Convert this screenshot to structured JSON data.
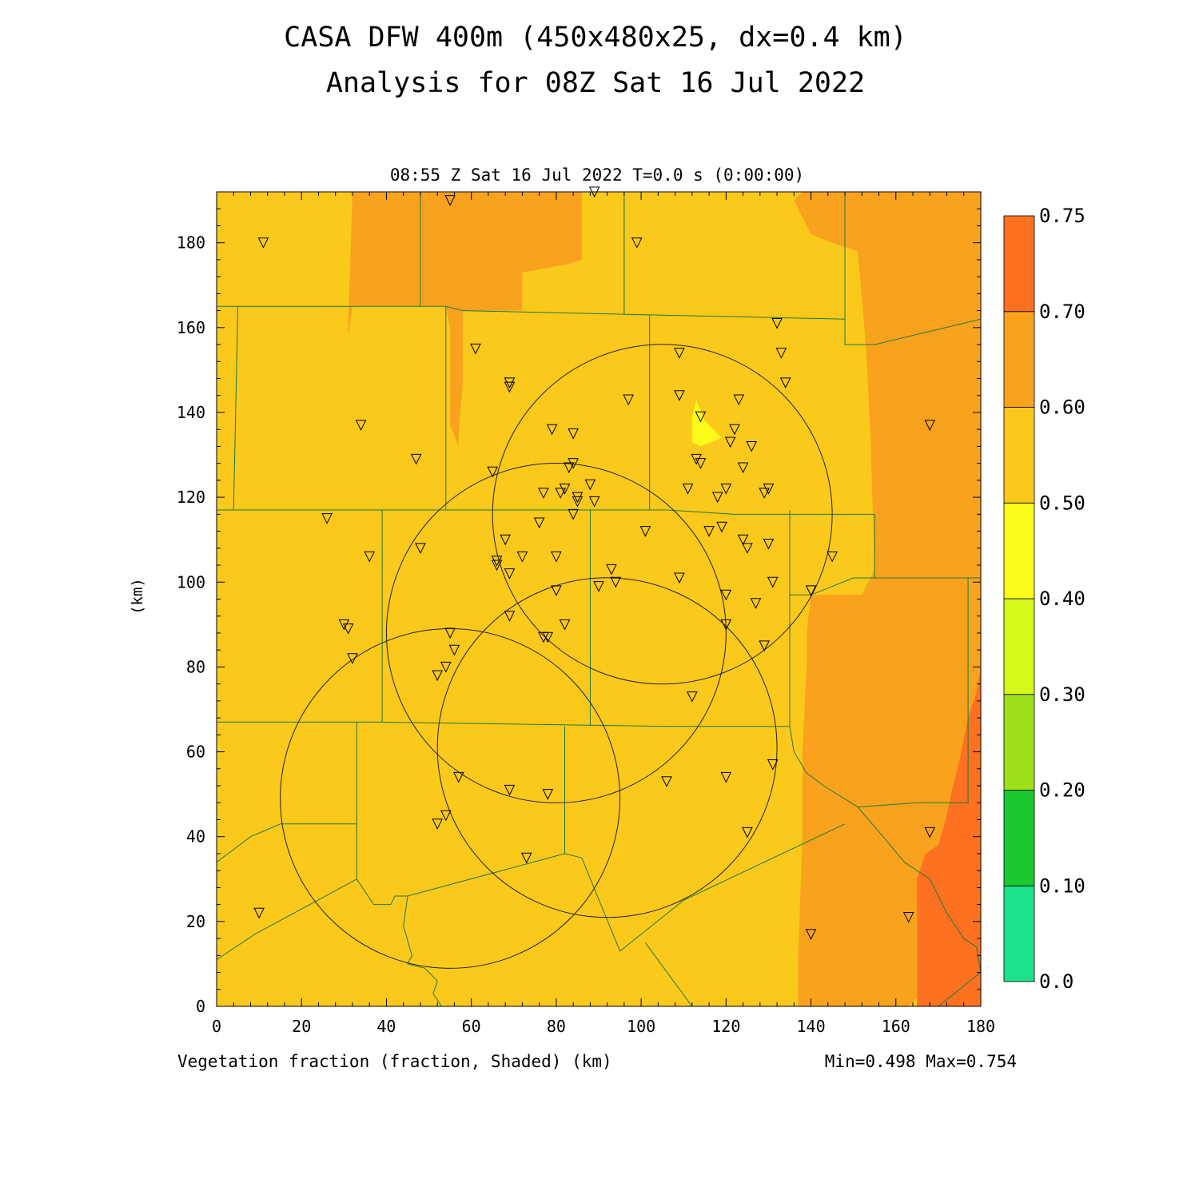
{
  "header": {
    "title_line1": "CASA DFW 400m (450x480x25, dx=0.4 km)",
    "title_line2": "Analysis for 08Z Sat 16 Jul 2022",
    "subtitle": "08:55 Z Sat 16 Jul 2022   T=0.0 s (0:00:00)"
  },
  "footer": {
    "variable_label": "Vegetation fraction (fraction, Shaded)  (km)",
    "minmax": "Min=0.498 Max=0.754"
  },
  "chart_data": {
    "type": "heatmap",
    "title": "Vegetation fraction (fraction, Shaded)",
    "xlabel": "(km)",
    "ylabel": "(km)",
    "xlim": [
      0,
      180
    ],
    "ylim": [
      0,
      192
    ],
    "x_ticks": [
      0,
      20,
      40,
      60,
      80,
      100,
      120,
      140,
      160,
      180
    ],
    "y_ticks": [
      0,
      20,
      40,
      60,
      80,
      100,
      120,
      140,
      160,
      180
    ],
    "min": 0.498,
    "max": 0.754,
    "colorbar": {
      "labels": [
        "0.0",
        "0.10",
        "0.20",
        "0.30",
        "0.40",
        "0.50",
        "0.60",
        "0.70",
        "0.75"
      ],
      "colors": [
        "#1de28c",
        "#1bc92e",
        "#9fe01b",
        "#d5f81b",
        "#fbfa18",
        "#fbc81c",
        "#f8a21e",
        "#fd7121"
      ]
    },
    "regions": [
      {
        "value": 0.55,
        "color": "#fbc81c",
        "polygon": [
          [
            0,
            0
          ],
          [
            180,
            0
          ],
          [
            180,
            192
          ],
          [
            0,
            192
          ]
        ]
      },
      {
        "value": 0.65,
        "color": "#f8a21e",
        "polygon": [
          [
            31,
            117
          ],
          [
            31,
            158
          ],
          [
            32,
            165
          ],
          [
            54,
            165
          ],
          [
            55,
            160
          ],
          [
            55,
            137
          ],
          [
            57,
            132
          ],
          [
            57,
            135
          ],
          [
            58,
            147
          ],
          [
            58,
            156
          ],
          [
            58,
            164
          ],
          [
            72,
            164
          ],
          [
            72,
            173
          ],
          [
            83,
            175
          ],
          [
            86,
            176
          ],
          [
            86,
            181
          ],
          [
            86,
            192
          ],
          [
            32,
            192
          ],
          [
            31,
            160
          ]
        ]
      },
      {
        "value": 0.65,
        "color": "#f8a21e",
        "polygon": [
          [
            138,
            192
          ],
          [
            180,
            192
          ],
          [
            180,
            80
          ],
          [
            179,
            60
          ],
          [
            175,
            52
          ],
          [
            172,
            40
          ],
          [
            168,
            28
          ],
          [
            165,
            20
          ],
          [
            165,
            2
          ],
          [
            163,
            0
          ],
          [
            137,
            0
          ],
          [
            137,
            12
          ],
          [
            138,
            40
          ],
          [
            138,
            60
          ],
          [
            139,
            80
          ],
          [
            139,
            88
          ],
          [
            140,
            97
          ],
          [
            152,
            97
          ],
          [
            155,
            103
          ],
          [
            154,
            135
          ],
          [
            153,
            155
          ],
          [
            152,
            167
          ],
          [
            151,
            178
          ],
          [
            145,
            180
          ],
          [
            140,
            182
          ],
          [
            136,
            190
          ]
        ]
      },
      {
        "value": 0.72,
        "color": "#fd7121",
        "polygon": [
          [
            180,
            80
          ],
          [
            180,
            0
          ],
          [
            165,
            0
          ],
          [
            165,
            30
          ],
          [
            167,
            36
          ],
          [
            170,
            38
          ],
          [
            172,
            45
          ],
          [
            173,
            50
          ],
          [
            175,
            58
          ],
          [
            177,
            68
          ],
          [
            179,
            74
          ]
        ]
      },
      {
        "value": 0.45,
        "color": "#fbfa18",
        "polygon": [
          [
            113,
            143
          ],
          [
            115,
            138
          ],
          [
            119,
            134
          ],
          [
            114,
            132
          ],
          [
            112,
            133
          ],
          [
            112,
            139
          ]
        ]
      }
    ],
    "range_rings": [
      {
        "center": [
          105,
          116
        ],
        "radius_km": 40
      },
      {
        "center": [
          80,
          88
        ],
        "radius_km": 40
      },
      {
        "center": [
          92,
          61
        ],
        "radius_km": 40
      },
      {
        "center": [
          55,
          49
        ],
        "radius_km": 40
      }
    ],
    "county_lines": [
      [
        [
          0,
          165
        ],
        [
          32,
          165
        ],
        [
          54,
          165
        ],
        [
          58,
          164
        ]
      ],
      [
        [
          58,
          164
        ],
        [
          102,
          163
        ],
        [
          148,
          162
        ],
        [
          148,
          156
        ],
        [
          155,
          156
        ],
        [
          180,
          162
        ]
      ],
      [
        [
          48,
          192
        ],
        [
          48,
          165
        ]
      ],
      [
        [
          96,
          192
        ],
        [
          96,
          163
        ]
      ],
      [
        [
          148,
          192
        ],
        [
          148,
          162
        ]
      ],
      [
        [
          5,
          165
        ],
        [
          4,
          117
        ]
      ],
      [
        [
          0,
          117
        ],
        [
          39,
          117
        ],
        [
          54,
          117
        ]
      ],
      [
        [
          54,
          117
        ],
        [
          106,
          117
        ],
        [
          122,
          116
        ],
        [
          155,
          116
        ]
      ],
      [
        [
          155,
          116
        ],
        [
          155,
          101
        ],
        [
          150,
          101
        ]
      ],
      [
        [
          150,
          101
        ],
        [
          140,
          97
        ],
        [
          135,
          97
        ]
      ],
      [
        [
          54,
          165
        ],
        [
          54,
          117
        ]
      ],
      [
        [
          102,
          163
        ],
        [
          102,
          117
        ]
      ],
      [
        [
          39,
          117
        ],
        [
          39,
          67
        ]
      ],
      [
        [
          0,
          67
        ],
        [
          33,
          67
        ],
        [
          39,
          67
        ],
        [
          106,
          66
        ],
        [
          135,
          66
        ],
        [
          135,
          117
        ]
      ],
      [
        [
          88,
          117
        ],
        [
          88,
          66
        ]
      ],
      [
        [
          33,
          67
        ],
        [
          33,
          43
        ],
        [
          15,
          43
        ],
        [
          8,
          40
        ],
        [
          0,
          34
        ]
      ],
      [
        [
          33,
          30
        ],
        [
          9,
          17
        ],
        [
          0,
          11
        ]
      ],
      [
        [
          33,
          43
        ],
        [
          33,
          30
        ]
      ],
      [
        [
          33,
          30
        ],
        [
          37,
          24
        ],
        [
          41,
          24
        ],
        [
          42,
          26
        ],
        [
          45,
          26
        ],
        [
          82,
          36
        ],
        [
          86,
          35
        ]
      ],
      [
        [
          82,
          66
        ],
        [
          82,
          36
        ]
      ],
      [
        [
          86,
          35
        ],
        [
          95,
          13
        ],
        [
          110,
          25
        ],
        [
          148,
          43
        ]
      ],
      [
        [
          135,
          66
        ],
        [
          136,
          60
        ],
        [
          139,
          55
        ],
        [
          143,
          52
        ],
        [
          151,
          47
        ]
      ],
      [
        [
          151,
          47
        ],
        [
          165,
          48
        ],
        [
          177,
          48
        ],
        [
          177,
          67
        ],
        [
          177,
          101
        ],
        [
          180,
          101
        ]
      ],
      [
        [
          155,
          101
        ],
        [
          172,
          101
        ],
        [
          177,
          101
        ]
      ],
      [
        [
          45,
          26
        ],
        [
          44,
          19
        ],
        [
          46,
          12
        ],
        [
          45,
          10
        ],
        [
          49,
          9
        ],
        [
          50,
          8
        ],
        [
          52,
          6
        ],
        [
          51,
          3
        ],
        [
          53,
          0
        ]
      ],
      [
        [
          151,
          47
        ],
        [
          157,
          40
        ],
        [
          162,
          34
        ],
        [
          168,
          30
        ],
        [
          170,
          26
        ],
        [
          172,
          22
        ],
        [
          176,
          16
        ],
        [
          179,
          14
        ],
        [
          180,
          8
        ]
      ],
      [
        [
          101,
          15
        ],
        [
          112,
          0
        ]
      ],
      [
        [
          170,
          0
        ],
        [
          180,
          8
        ]
      ]
    ],
    "stations": [
      [
        11,
        180
      ],
      [
        55,
        190
      ],
      [
        89,
        192
      ],
      [
        99,
        180
      ],
      [
        61,
        155
      ],
      [
        34,
        137
      ],
      [
        47,
        129
      ],
      [
        69,
        147
      ],
      [
        69,
        146
      ],
      [
        79,
        136
      ],
      [
        84,
        135
      ],
      [
        97,
        143
      ],
      [
        109,
        154
      ],
      [
        109,
        144
      ],
      [
        114,
        139
      ],
      [
        123,
        143
      ],
      [
        132,
        161
      ],
      [
        133,
        154
      ],
      [
        134,
        147
      ],
      [
        168,
        137
      ],
      [
        65,
        126
      ],
      [
        77,
        121
      ],
      [
        81,
        121
      ],
      [
        82,
        122
      ],
      [
        83,
        127
      ],
      [
        84,
        128
      ],
      [
        88,
        123
      ],
      [
        85,
        120
      ],
      [
        85,
        119
      ],
      [
        89,
        119
      ],
      [
        84,
        116
      ],
      [
        111,
        122
      ],
      [
        113,
        129
      ],
      [
        114,
        128
      ],
      [
        118,
        120
      ],
      [
        120,
        122
      ],
      [
        121,
        133
      ],
      [
        122,
        136
      ],
      [
        124,
        127
      ],
      [
        126,
        132
      ],
      [
        129,
        121
      ],
      [
        130,
        122
      ],
      [
        26,
        115
      ],
      [
        36,
        106
      ],
      [
        48,
        108
      ],
      [
        66,
        104
      ],
      [
        66,
        105
      ],
      [
        68,
        110
      ],
      [
        69,
        102
      ],
      [
        72,
        106
      ],
      [
        76,
        114
      ],
      [
        80,
        106
      ],
      [
        101,
        112
      ],
      [
        109,
        101
      ],
      [
        116,
        112
      ],
      [
        119,
        113
      ],
      [
        120,
        97
      ],
      [
        124,
        110
      ],
      [
        125,
        108
      ],
      [
        127,
        95
      ],
      [
        129,
        85
      ],
      [
        130,
        109
      ],
      [
        131,
        100
      ],
      [
        145,
        106
      ],
      [
        140,
        98
      ],
      [
        30,
        90
      ],
      [
        31,
        89
      ],
      [
        32,
        82
      ],
      [
        52,
        78
      ],
      [
        54,
        80
      ],
      [
        55,
        88
      ],
      [
        56,
        84
      ],
      [
        69,
        92
      ],
      [
        77,
        87
      ],
      [
        78,
        87
      ],
      [
        80,
        98
      ],
      [
        82,
        90
      ],
      [
        90,
        99
      ],
      [
        93,
        103
      ],
      [
        94,
        100
      ],
      [
        112,
        73
      ],
      [
        120,
        90
      ],
      [
        57,
        54
      ],
      [
        69,
        51
      ],
      [
        78,
        50
      ],
      [
        106,
        53
      ],
      [
        120,
        54
      ],
      [
        125,
        41
      ],
      [
        131,
        57
      ],
      [
        52,
        43
      ],
      [
        54,
        45
      ],
      [
        73,
        35
      ],
      [
        10,
        22
      ],
      [
        140,
        17
      ],
      [
        163,
        21
      ],
      [
        168,
        41
      ]
    ]
  }
}
